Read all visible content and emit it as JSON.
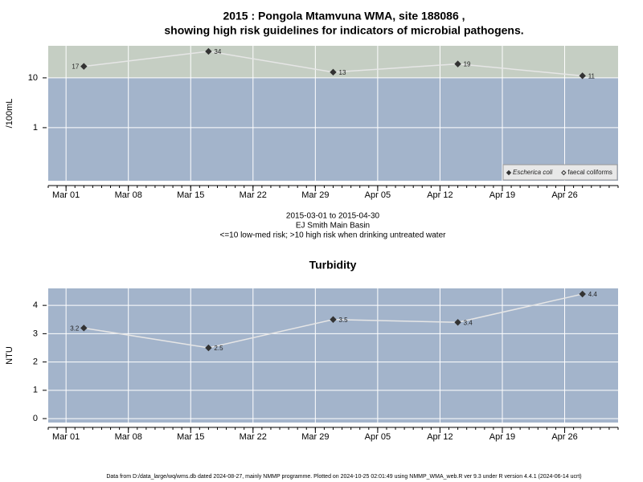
{
  "chart_data": [
    {
      "type": "line",
      "title": [
        "2015 : Pongola Mtamvuna WMA, site 188086 ,",
        "showing high risk guidelines for indicators of microbial pathogens."
      ],
      "ylabel": "/100mL",
      "log_y": true,
      "ylim": [
        0.086,
        44
      ],
      "yticks": [
        1,
        10
      ],
      "threshold": 10,
      "above_color": "#c5cec3",
      "below_color": "#a3b4cb",
      "x": [
        "2015-03-03",
        "2015-03-17",
        "2015-03-31",
        "2015-04-14",
        "2015-04-28"
      ],
      "xlim": [
        "2015-02-27",
        "2015-05-02"
      ],
      "xticks": [
        {
          "value": "2015-03-01",
          "label": "Mar 01"
        },
        {
          "value": "2015-03-08",
          "label": "Mar 08"
        },
        {
          "value": "2015-03-15",
          "label": "Mar 15"
        },
        {
          "value": "2015-03-22",
          "label": "Mar 22"
        },
        {
          "value": "2015-03-29",
          "label": "Mar 29"
        },
        {
          "value": "2015-04-05",
          "label": "Apr 05"
        },
        {
          "value": "2015-04-12",
          "label": "Apr 12"
        },
        {
          "value": "2015-04-19",
          "label": "Apr 19"
        },
        {
          "value": "2015-04-26",
          "label": "Apr 26"
        }
      ],
      "series": [
        {
          "name": "Escherica coli",
          "color": "#333333",
          "line_color": "#e6e6e6",
          "marker": "filled",
          "values": [
            17,
            34,
            13,
            19,
            11
          ]
        },
        {
          "name": "faecal coliforms",
          "color": "#333333",
          "line_color": "#e6e6e6",
          "marker": "open",
          "values": [
            null,
            null,
            null,
            null,
            null
          ]
        }
      ],
      "legend": "bottom-right",
      "grid": true,
      "annotations": [
        "2015-03-01 to 2015-04-30",
        "EJ Smith Main Basin",
        "<=10 low-med risk; >10 high risk when drinking untreated water"
      ]
    },
    {
      "type": "line",
      "title": "Turbidity",
      "ylabel": "NTU",
      "log_y": false,
      "ylim": [
        -0.14,
        4.6
      ],
      "yticks": [
        0,
        1,
        2,
        3,
        4
      ],
      "background": "#a3b4cb",
      "x": [
        "2015-03-03",
        "2015-03-17",
        "2015-03-31",
        "2015-04-14",
        "2015-04-28"
      ],
      "xlim": [
        "2015-02-27",
        "2015-05-02"
      ],
      "xticks": [
        {
          "value": "2015-03-01",
          "label": "Mar 01"
        },
        {
          "value": "2015-03-08",
          "label": "Mar 08"
        },
        {
          "value": "2015-03-15",
          "label": "Mar 15"
        },
        {
          "value": "2015-03-22",
          "label": "Mar 22"
        },
        {
          "value": "2015-03-29",
          "label": "Mar 29"
        },
        {
          "value": "2015-04-05",
          "label": "Apr 05"
        },
        {
          "value": "2015-04-12",
          "label": "Apr 12"
        },
        {
          "value": "2015-04-19",
          "label": "Apr 19"
        },
        {
          "value": "2015-04-26",
          "label": "Apr 26"
        }
      ],
      "values": [
        3.2,
        2.5,
        3.5,
        3.4,
        4.4
      ],
      "color": "#333333",
      "line_color": "#e6e6e6",
      "grid": true
    }
  ],
  "footer": "Data from D:/data_large/wq/wms.db dated 2024-08-27, mainly NMMP programme. Plotted on 2024-10-25 02:01:49 using NMMP_WMA_web.R ver 9.3 under R version 4.4.1 (2024-06-14 ucrt)"
}
